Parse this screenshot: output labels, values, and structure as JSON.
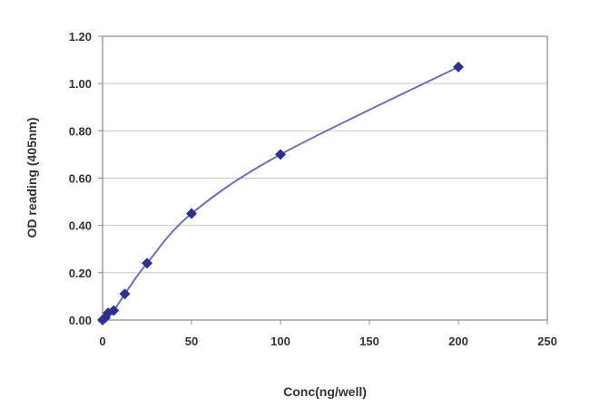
{
  "chart_data": {
    "type": "line",
    "title": "",
    "xlabel": "Conc(ng/well)",
    "ylabel": "OD reading (405nm)",
    "xlim": [
      0,
      250
    ],
    "ylim": [
      0,
      1.2
    ],
    "xticks": [
      "0",
      "50",
      "100",
      "150",
      "200",
      "250"
    ],
    "yticks": [
      "0.00",
      "0.20",
      "0.40",
      "0.60",
      "0.80",
      "1.00",
      "1.20"
    ],
    "grid": "horizontal",
    "legend": "none",
    "series": [
      {
        "x": [
          0,
          1.5625,
          3.125,
          6.25,
          12.5,
          25,
          50,
          100,
          200
        ],
        "y": [
          0.0,
          0.01,
          0.03,
          0.04,
          0.11,
          0.24,
          0.45,
          0.7,
          1.07
        ],
        "color": "#2e3192",
        "line_color": "#6c6fb8",
        "marker": "diamond",
        "smooth": true
      }
    ]
  }
}
